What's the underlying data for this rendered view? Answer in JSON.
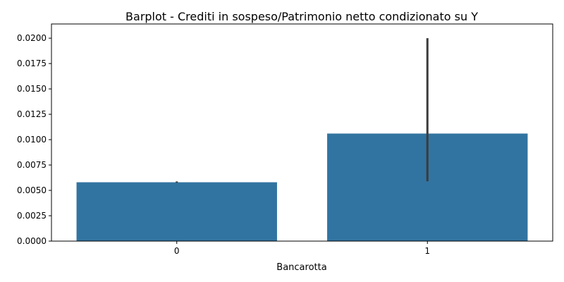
{
  "chart_data": {
    "type": "bar",
    "title": "Barplot - Crediti in sospeso/Patrimonio netto condizionato su Y",
    "xlabel": "Bancarotta",
    "ylabel": "",
    "categories": [
      "0",
      "1"
    ],
    "values": [
      0.0058,
      0.0106
    ],
    "error_bars": [
      {
        "low": 0.00575,
        "high": 0.00588
      },
      {
        "low": 0.0059,
        "high": 0.02
      }
    ],
    "ylim": [
      0,
      0.0214
    ],
    "yticks": [
      0.0,
      0.0025,
      0.005,
      0.0075,
      0.01,
      0.0125,
      0.015,
      0.0175,
      0.02
    ],
    "ytick_labels": [
      "0.0000",
      "0.0025",
      "0.0050",
      "0.0075",
      "0.0100",
      "0.0125",
      "0.0150",
      "0.0175",
      "0.0200"
    ],
    "grid": false,
    "bar_color": "#3274a1",
    "error_color": "#3b3b3b"
  }
}
